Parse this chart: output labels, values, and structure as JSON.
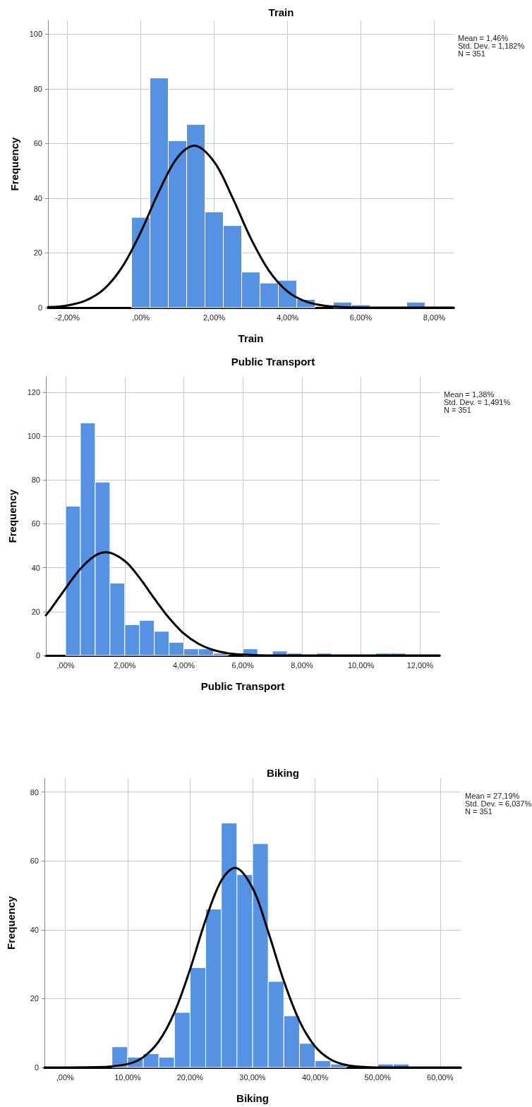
{
  "chart_data": [
    {
      "type": "histogram",
      "title": "Train",
      "xlabel": "Train",
      "ylabel": "Frequency",
      "annotations": [
        "Mean = 1,46%",
        "Std. Dev. = 1,182%",
        "N = 351"
      ],
      "bins": [
        -0.25,
        0.25,
        0.75,
        1.25,
        1.75,
        2.25,
        2.75,
        3.25,
        3.75,
        4.25,
        4.75,
        5.25,
        5.75,
        6.25,
        6.75,
        7.25,
        7.75
      ],
      "values": [
        33,
        84,
        61,
        67,
        35,
        30,
        13,
        9,
        10,
        3,
        0,
        2,
        1,
        0,
        0,
        2
      ],
      "color": "#5592e3",
      "series": [
        {
          "type": "line",
          "color": "#000000",
          "x": [
            -2.53,
            -2.0,
            -1.5,
            -1.0,
            -0.5,
            0,
            0.5,
            1.0,
            1.46,
            2.0,
            2.5,
            3.0,
            3.5,
            4.0,
            4.5,
            5.0,
            5.5,
            6.0,
            8.53
          ],
          "values": [
            0.2,
            0.8,
            2.6,
            6.8,
            15.0,
            27.6,
            42.6,
            54.9,
            59.2,
            53.3,
            40.2,
            25.3,
            13.4,
            5.9,
            2.2,
            0.7,
            0.2,
            0,
            0
          ]
        }
      ],
      "xlim": [
        -2.53,
        8.53
      ],
      "xticks": [
        {
          "value": -2,
          "label": "-2,00%"
        },
        {
          "value": 0,
          "label": ",00%"
        },
        {
          "value": 2,
          "label": "2,00%"
        },
        {
          "value": 4,
          "label": "4,00%"
        },
        {
          "value": 6,
          "label": "6,00%"
        },
        {
          "value": 8,
          "label": "8,00%"
        }
      ],
      "ylim": [
        0,
        105
      ],
      "yticks": [
        0,
        20,
        40,
        60,
        80,
        100
      ],
      "grid": true,
      "marker": "none"
    },
    {
      "type": "histogram",
      "title": "Public Transport",
      "xlabel": "Public Transport",
      "ylabel": "Frequency",
      "annotations": [
        "Mean = 1,38%",
        "Std. Dev. = 1,491%",
        "N = 351"
      ],
      "bins": [
        0,
        0.5,
        1,
        1.5,
        2,
        2.5,
        3,
        3.5,
        4,
        4.5,
        5,
        5.5,
        6,
        6.5,
        7,
        7.5,
        8,
        8.5,
        9,
        9.5,
        10,
        10.5,
        11,
        11.5
      ],
      "values": [
        68,
        106,
        79,
        33,
        14,
        16,
        11,
        6,
        3,
        3,
        1,
        0,
        3,
        0,
        2,
        1,
        0,
        1,
        0,
        0,
        0,
        1,
        1
      ],
      "color": "#5592e3",
      "series": [
        {
          "type": "line",
          "color": "#000000",
          "x": [
            -0.67,
            -0.5,
            0,
            0.5,
            1.0,
            1.38,
            2.0,
            2.5,
            3.0,
            3.5,
            4.0,
            4.5,
            5.0,
            5.5,
            6.0,
            7.0,
            12.66
          ],
          "values": [
            18.3,
            21.2,
            30.6,
            39.5,
            45.5,
            47.0,
            43.1,
            35.4,
            26.0,
            17.1,
            10.0,
            5.3,
            2.5,
            1.0,
            0.4,
            0,
            0
          ]
        }
      ],
      "xlim": [
        -0.67,
        12.66
      ],
      "xticks": [
        {
          "value": 0,
          "label": ",00%"
        },
        {
          "value": 2,
          "label": "2,00%"
        },
        {
          "value": 4,
          "label": "4,00%"
        },
        {
          "value": 6,
          "label": "6,00%"
        },
        {
          "value": 8,
          "label": "8,00%"
        },
        {
          "value": 10,
          "label": "10,00%"
        },
        {
          "value": 12,
          "label": "12,00%"
        }
      ],
      "ylim": [
        0,
        127
      ],
      "yticks": [
        0,
        20,
        40,
        60,
        80,
        100,
        120
      ],
      "grid": true,
      "marker": "none"
    },
    {
      "type": "histogram",
      "title": "Biking",
      "xlabel": "Biking",
      "ylabel": "Frequency",
      "annotations": [
        "Mean = 27,19%",
        "Std. Dev. = 6,037%",
        "N = 351"
      ],
      "bins": [
        7.5,
        10,
        12.5,
        15,
        17.5,
        20,
        22.5,
        25,
        27.5,
        30,
        32.5,
        35,
        37.5,
        40,
        42.5,
        45,
        47.5,
        50,
        52.5,
        55
      ],
      "values": [
        6,
        3,
        4,
        3,
        16,
        29,
        46,
        71,
        56,
        65,
        25,
        15,
        7,
        2,
        1,
        0,
        0,
        1,
        1
      ],
      "color": "#5592e3",
      "series": [
        {
          "type": "line",
          "color": "#000000",
          "x": [
            -3.3,
            5,
            10,
            12.5,
            15,
            17.5,
            20,
            22.5,
            25,
            27.19,
            30,
            32.5,
            35,
            37.5,
            40,
            42.5,
            45,
            47.5,
            50,
            63.3
          ],
          "values": [
            0,
            0.1,
            1.0,
            3.0,
            7.6,
            16.0,
            28.5,
            42.9,
            54.3,
            58.0,
            52.1,
            39.4,
            25.1,
            13.5,
            6.1,
            2.3,
            0.7,
            0.2,
            0,
            0
          ]
        }
      ],
      "xlim": [
        -3.3,
        63.3
      ],
      "xticks": [
        {
          "value": 0,
          "label": ",00%"
        },
        {
          "value": 10,
          "label": "10,00%"
        },
        {
          "value": 20,
          "label": "20,00%"
        },
        {
          "value": 30,
          "label": "30,00%"
        },
        {
          "value": 40,
          "label": "40,00%"
        },
        {
          "value": 50,
          "label": "50,00%"
        },
        {
          "value": 60,
          "label": "60,00%"
        }
      ],
      "ylim": [
        0,
        84
      ],
      "yticks": [
        0,
        20,
        40,
        60,
        80
      ],
      "grid": true,
      "marker": "none"
    }
  ]
}
